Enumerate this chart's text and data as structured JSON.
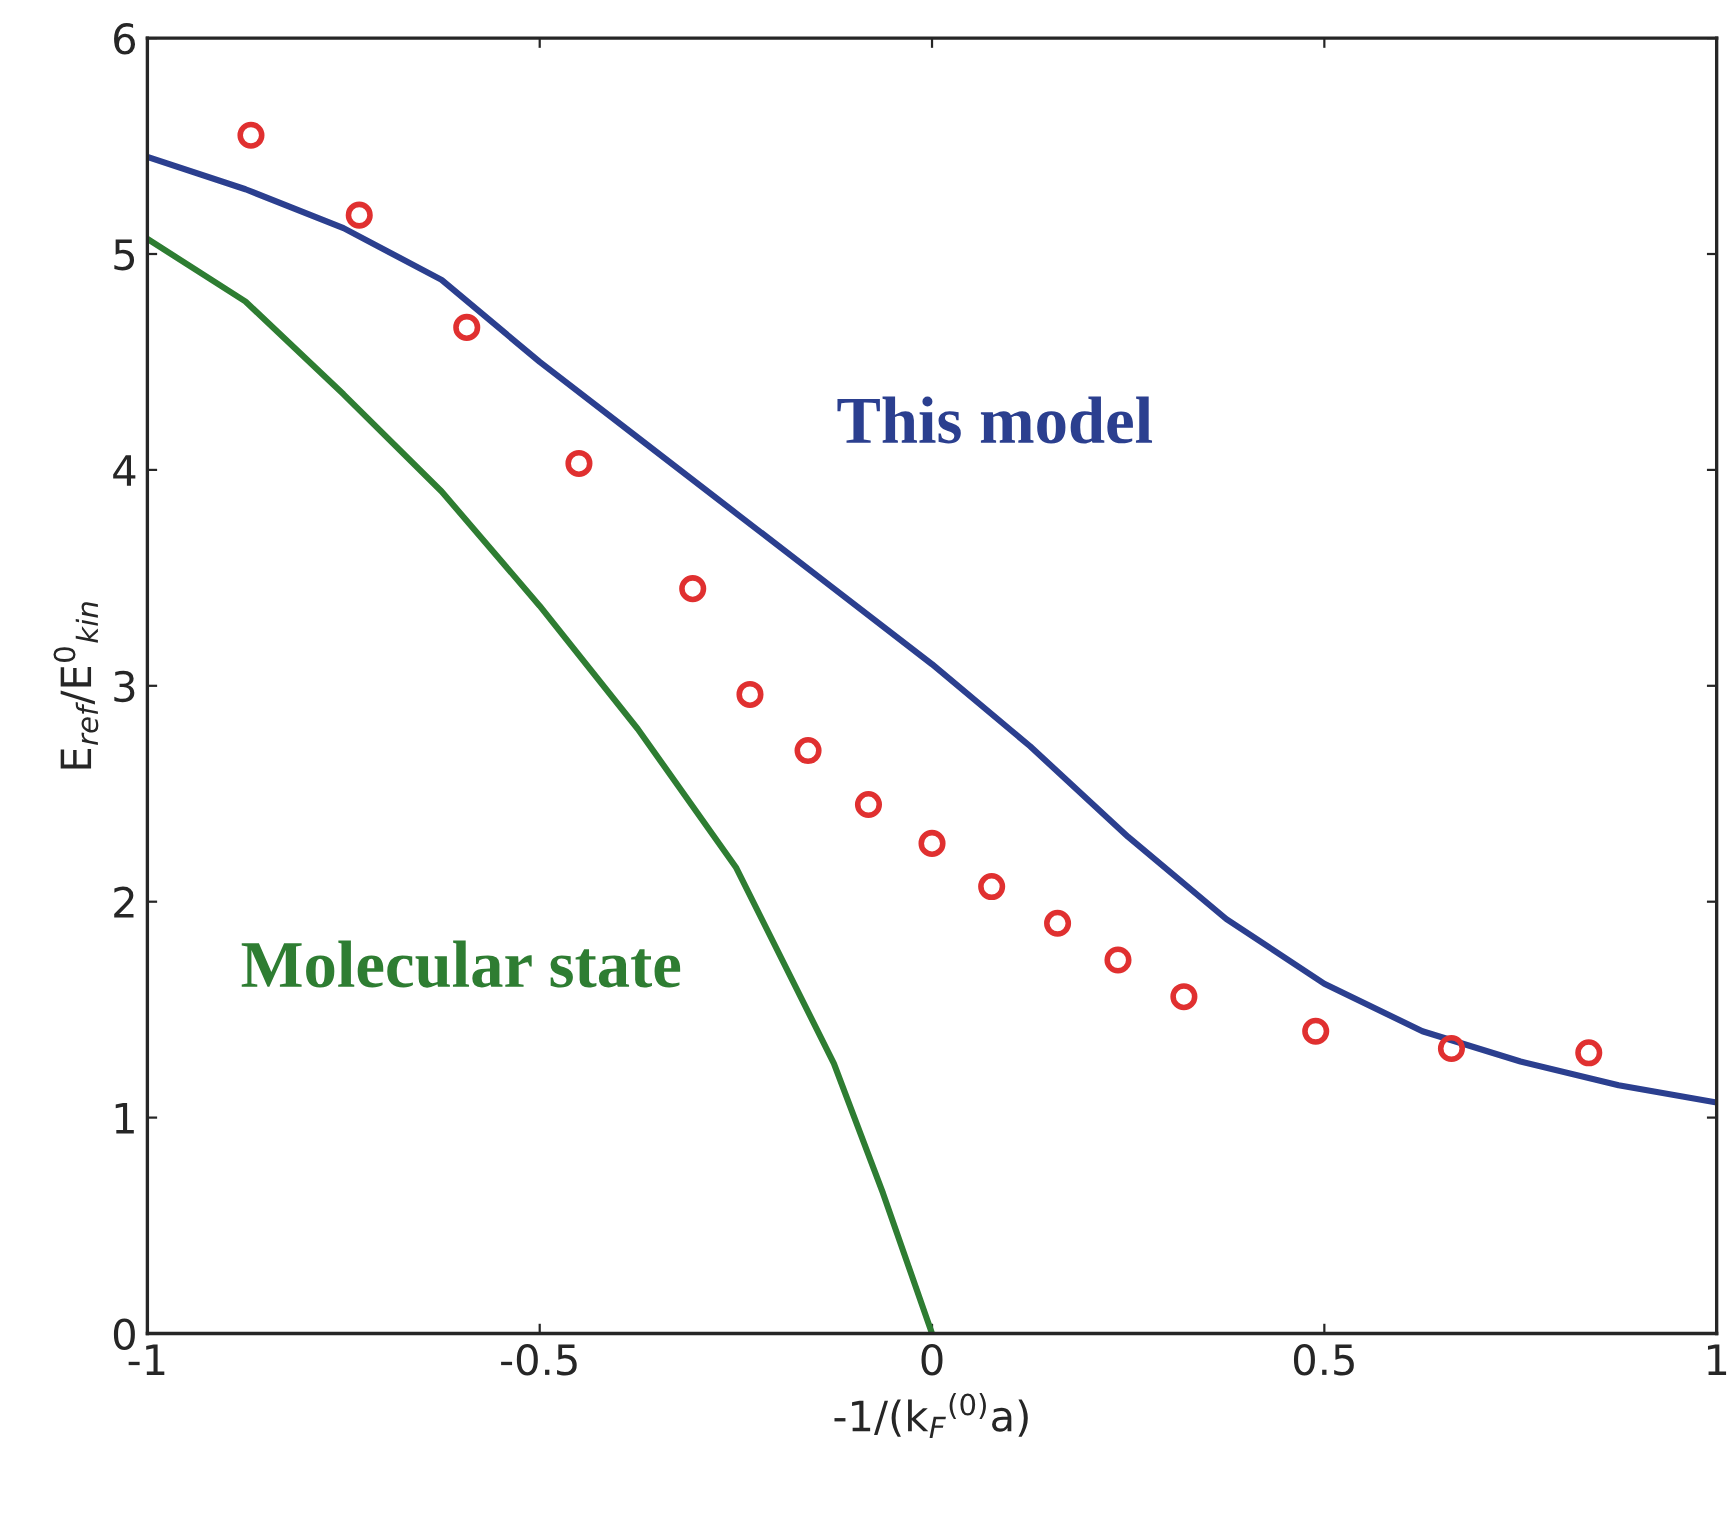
{
  "chart_data": {
    "type": "line",
    "xlabel": "-1/(k$_{F}$$^{(0)}$a)",
    "ylabel": "E$_{ref}$/E$^{0}$$_{kin}$",
    "xlim": [
      -1,
      1
    ],
    "ylim": [
      0,
      6
    ],
    "xticks": [
      -1,
      -0.5,
      0,
      0.5,
      1
    ],
    "yticks": [
      0,
      1,
      2,
      3,
      4,
      5,
      6
    ],
    "grid": false,
    "series": [
      {
        "name": "This model",
        "color": "#2b3f8f",
        "x": [
          -1,
          -0.875,
          -0.75,
          -0.625,
          -0.5,
          -0.375,
          -0.25,
          -0.125,
          0,
          0.125,
          0.25,
          0.375,
          0.5,
          0.625,
          0.75,
          0.875,
          1
        ],
        "values": [
          5.45,
          5.3,
          5.12,
          4.88,
          4.5,
          4.15,
          3.8,
          3.45,
          3.1,
          2.72,
          2.3,
          1.92,
          1.62,
          1.4,
          1.26,
          1.15,
          1.07
        ]
      },
      {
        "name": "Molecular state",
        "color": "#2e7d32",
        "x": [
          -1,
          -0.875,
          -0.75,
          -0.625,
          -0.5,
          -0.375,
          -0.25,
          -0.125,
          -0.0625,
          0
        ],
        "values": [
          5.07,
          4.78,
          4.35,
          3.9,
          3.37,
          2.8,
          2.16,
          1.25,
          0.65,
          0
        ]
      },
      {
        "type": "scatter",
        "color": "#e03030",
        "marker": "circle",
        "x": [
          -0.868,
          -0.73,
          -0.593,
          -0.45,
          -0.305,
          -0.232,
          -0.158,
          -0.081,
          0,
          0.076,
          0.16,
          0.237,
          0.321,
          0.489,
          0.662,
          0.837
        ],
        "values": [
          5.55,
          5.18,
          4.66,
          4.03,
          3.45,
          2.96,
          2.7,
          2.45,
          2.27,
          2.07,
          1.9,
          1.73,
          1.56,
          1.4,
          1.32,
          1.3
        ]
      }
    ]
  }
}
